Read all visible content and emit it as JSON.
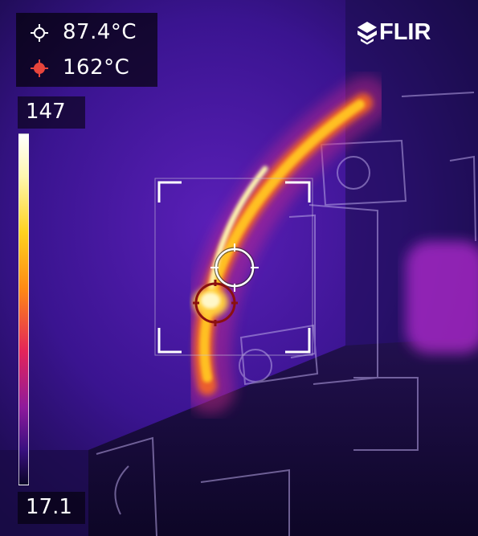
{
  "readouts": {
    "spot": {
      "icon": "crosshair-icon",
      "value": "87.4°C"
    },
    "max": {
      "icon": "hot-spot-icon",
      "value": "162°C",
      "color": "#e8453c"
    }
  },
  "scale": {
    "max": "147",
    "min": "17.1"
  },
  "brand": {
    "logo_text": "FLIR"
  },
  "colors": {
    "background": "#14093a",
    "hot": "#ffffff",
    "warm": "#ffb020",
    "cool": "#6a1aa8",
    "cold": "#0a0428"
  }
}
